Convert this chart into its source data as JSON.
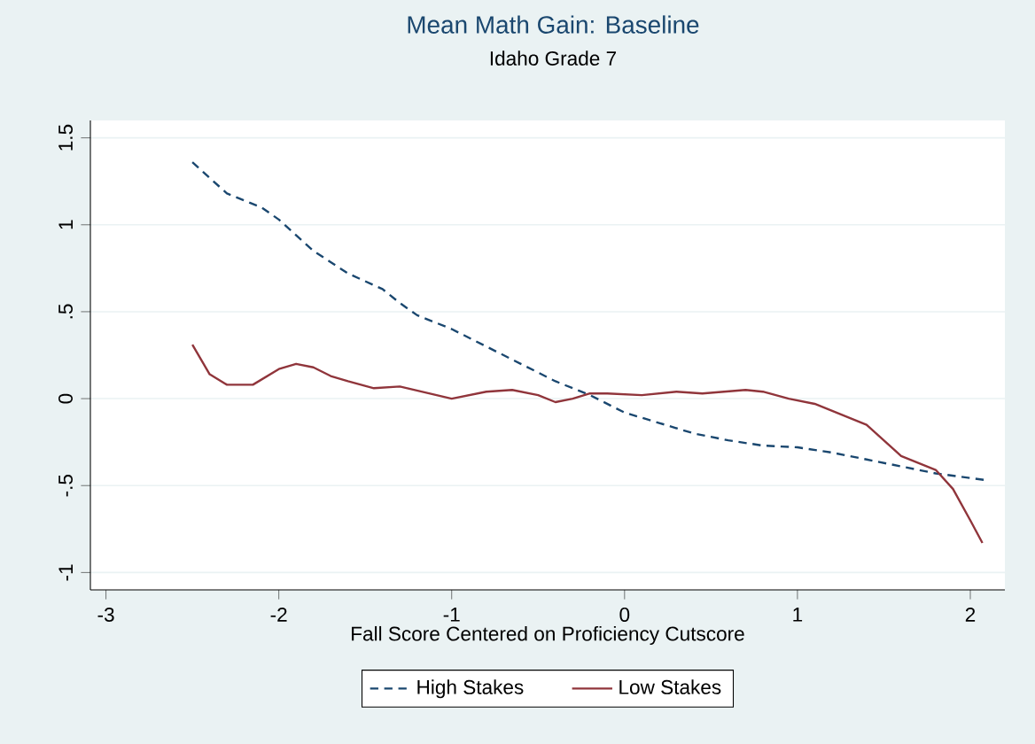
{
  "chart_data": {
    "type": "line",
    "title": "Mean Math Gain: Baseline",
    "subtitle": "Idaho Grade 7",
    "xlabel": "Fall Score Centered on Proficiency Cutscore",
    "xlim": [
      -3.09,
      2.2
    ],
    "ylim": [
      -1.1,
      1.6
    ],
    "xticks": [
      -3,
      -2,
      -1,
      0,
      1,
      2
    ],
    "yticks": [
      -1,
      {
        "value": -0.5,
        "label": "-.5"
      },
      0,
      {
        "value": 0.5,
        "label": ".5"
      },
      1,
      1.5
    ],
    "grid": "y",
    "legend": "bottom",
    "series": [
      {
        "name": "High Stakes",
        "color": "#1a476f",
        "line_style": "dashed",
        "x": [
          -2.5,
          -2.3,
          -2.1,
          -2.0,
          -1.8,
          -1.6,
          -1.4,
          -1.3,
          -1.2,
          -1.0,
          -0.8,
          -0.6,
          -0.4,
          -0.2,
          0,
          0.2,
          0.4,
          0.6,
          0.8,
          1.0,
          1.2,
          1.4,
          1.6,
          1.8,
          2.1
        ],
        "values": [
          1.36,
          1.18,
          1.1,
          1.03,
          0.85,
          0.72,
          0.63,
          0.55,
          0.48,
          0.4,
          0.3,
          0.2,
          0.1,
          0.02,
          -0.08,
          -0.14,
          -0.2,
          -0.24,
          -0.27,
          -0.28,
          -0.31,
          -0.35,
          -0.39,
          -0.43,
          -0.47
        ]
      },
      {
        "name": "Low Stakes",
        "color": "#90353b",
        "line_style": "solid",
        "x": [
          -2.5,
          -2.4,
          -2.3,
          -2.15,
          -2.0,
          -1.9,
          -1.8,
          -1.7,
          -1.6,
          -1.45,
          -1.3,
          -1.0,
          -0.8,
          -0.65,
          -0.5,
          -0.4,
          -0.3,
          -0.2,
          -0.1,
          0.1,
          0.3,
          0.45,
          0.7,
          0.8,
          0.95,
          1.1,
          1.2,
          1.4,
          1.6,
          1.8,
          1.9,
          2.0,
          2.07
        ],
        "values": [
          0.31,
          0.14,
          0.08,
          0.08,
          0.17,
          0.2,
          0.18,
          0.13,
          0.1,
          0.06,
          0.07,
          0.0,
          0.04,
          0.05,
          0.02,
          -0.02,
          0.0,
          0.03,
          0.03,
          0.02,
          0.04,
          0.03,
          0.05,
          0.04,
          0.0,
          -0.03,
          -0.07,
          -0.15,
          -0.33,
          -0.41,
          -0.52,
          -0.7,
          -0.83
        ]
      }
    ]
  }
}
